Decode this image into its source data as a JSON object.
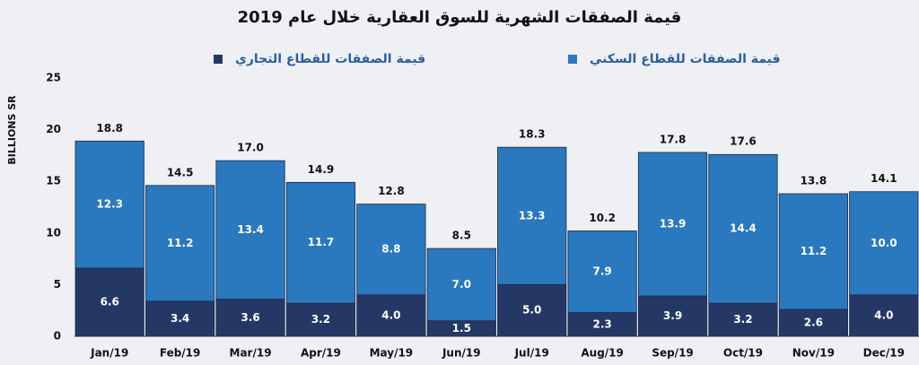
{
  "chart_data": {
    "type": "stacked-bar",
    "title": "قيمة الصفقات الشهرية للسوق العقارية خلال عام 2019",
    "y_label": "BILLIONS SR",
    "categories": [
      "Jan/19",
      "Feb/19",
      "Mar/19",
      "Apr/19",
      "May/19",
      "Jun/19",
      "Jul/19",
      "Aug/19",
      "Sep/19",
      "Oct/19",
      "Nov/19",
      "Dec/19"
    ],
    "series": [
      {
        "name": "قيمة الصفقات للقطاع التجاري",
        "color": "#253865",
        "values": [
          6.6,
          3.4,
          3.6,
          3.2,
          4.0,
          1.5,
          5.0,
          2.3,
          3.9,
          3.2,
          2.6,
          4.0
        ],
        "value_labels": [
          "6.6",
          "3.4",
          "3.6",
          "3.2",
          "4.0",
          "1.5",
          "5.0",
          "2.3",
          "3.9",
          "3.2",
          "2.6",
          "4.0"
        ]
      },
      {
        "name": "قيمة الصفقات للقطاع السكني",
        "color": "#2a78bd",
        "values": [
          12.3,
          11.2,
          13.4,
          11.7,
          8.8,
          7.0,
          13.3,
          7.9,
          13.9,
          14.4,
          11.2,
          10.0
        ],
        "value_labels": [
          "12.3",
          "11.2",
          "13.4",
          "11.7",
          "8.8",
          "7.0",
          "13.3",
          "7.9",
          "13.9",
          "14.4",
          "11.2",
          "10.0"
        ]
      }
    ],
    "total_labels": [
      "18.8",
      "14.5",
      "17.0",
      "14.9",
      "12.8",
      "8.5",
      "18.3",
      "10.2",
      "17.8",
      "17.6",
      "13.8",
      "14.1"
    ],
    "ylim": [
      0,
      25
    ],
    "yticks": [
      0,
      5,
      10,
      15,
      20,
      25
    ],
    "grid": false
  }
}
